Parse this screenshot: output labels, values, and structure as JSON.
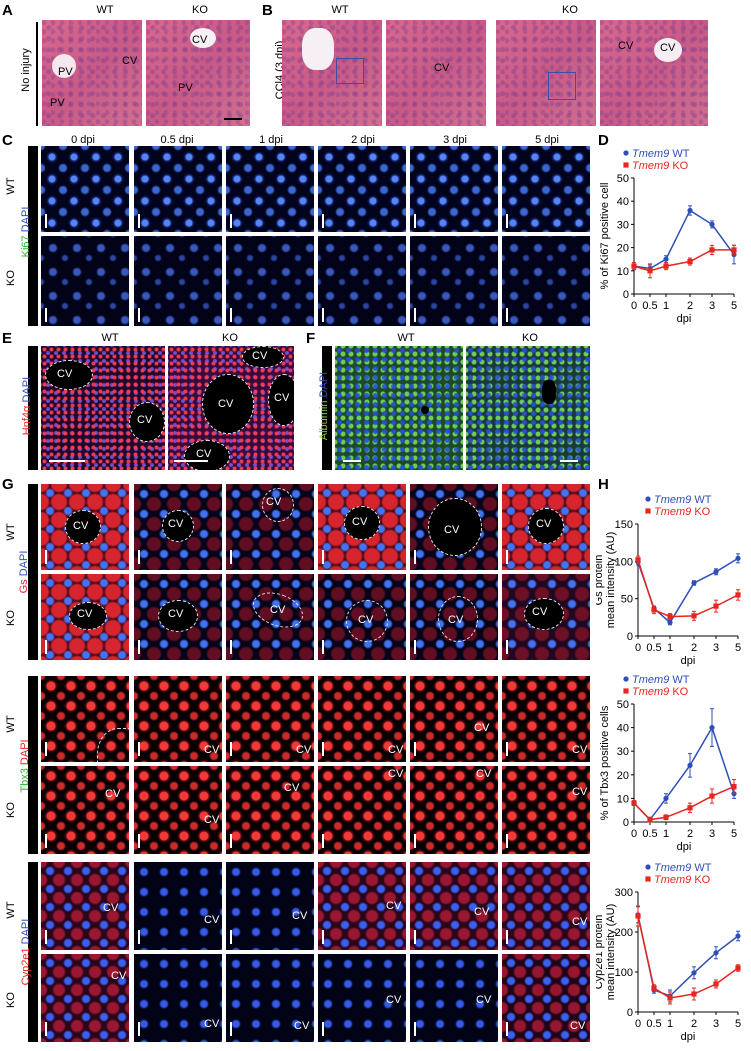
{
  "panels": {
    "A": {
      "letter": "A",
      "col_wt": "WT",
      "col_ko": "KO",
      "row_label": "No injury",
      "labels": {
        "pv1": "PV",
        "pv2": "PV",
        "cv1": "CV",
        "cv2": "CV",
        "pv3": "PV"
      }
    },
    "B": {
      "letter": "B",
      "col_wt": "WT",
      "col_ko": "KO",
      "row_label": "CCl4 (3 dpi)",
      "labels": {
        "cv_wt": "CV",
        "cv_ko1": "CV",
        "cv_ko2": "CV"
      }
    },
    "C": {
      "letter": "C",
      "timepoints": [
        "0 dpi",
        "0.5 dpi",
        "1 dpi",
        "2 dpi",
        "3 dpi",
        "5 dpi"
      ],
      "row_wt": "WT",
      "row_ko": "KO",
      "stain_label_1": "Ki67",
      "stain_label_2": "DAPI"
    },
    "D": {
      "letter": "D"
    },
    "E": {
      "letter": "E",
      "col_wt": "WT",
      "col_ko": "KO",
      "stain_label_1": "Hnf4α",
      "stain_label_2": "DAPI",
      "labels": {
        "cv1": "CV",
        "cv2": "CV",
        "cv3": "CV",
        "cv4": "CV",
        "cv5": "CV",
        "cv6": "CV"
      }
    },
    "F": {
      "letter": "F",
      "col_wt": "WT",
      "col_ko": "KO",
      "stain_label_1": "Albumin",
      "stain_label_2": "DAPI"
    },
    "G": {
      "letter": "G",
      "row_wt": "WT",
      "row_ko": "KO",
      "gs_label_1": "Gs",
      "gs_label_2": "DAPI",
      "tbx_label_1": "Tbx3",
      "tbx_label_2": "DAPI",
      "cyp_label_1": "Cyp2e1",
      "cyp_label_2": "DAPI",
      "cv": "CV"
    },
    "H": {
      "letter": "H"
    }
  },
  "colors": {
    "wt": "#2e4fb8",
    "ko": "#e8251f"
  },
  "chart_data": [
    {
      "id": "D",
      "type": "line",
      "x": [
        0,
        0.5,
        1,
        2,
        3,
        5
      ],
      "xticklabels": [
        "0",
        "0.5",
        "1",
        "2",
        "3",
        "5"
      ],
      "xlabel": "dpi",
      "ylabel": "% of Ki67 positive cell",
      "ylim": [
        0,
        50
      ],
      "yticks": [
        0,
        10,
        20,
        30,
        40,
        50
      ],
      "legend": "top-left",
      "series": [
        {
          "name": "Tmem9 WT",
          "values": [
            12,
            11,
            15,
            36,
            30,
            17
          ],
          "err": [
            1.5,
            1.5,
            1.5,
            2,
            1.5,
            4
          ]
        },
        {
          "name": "Tmem9 KO",
          "values": [
            12,
            10,
            12,
            14,
            19,
            19
          ],
          "err": [
            1.5,
            3,
            1.5,
            1.5,
            2,
            2
          ]
        }
      ]
    },
    {
      "id": "H1",
      "type": "line",
      "x": [
        0,
        0.5,
        1,
        2,
        3,
        5
      ],
      "xticklabels": [
        "0",
        "0.5",
        "1",
        "2",
        "3",
        "5"
      ],
      "xlabel": "dpi",
      "ylabel_1": "Gs protein",
      "ylabel_2": "mean intensity (AU)",
      "ylim": [
        0,
        150
      ],
      "yticks": [
        0,
        50,
        100,
        150
      ],
      "legend": "top-right",
      "series": [
        {
          "name": "Tmem9 WT",
          "values": [
            99,
            37,
            18,
            71,
            86,
            104
          ],
          "err": [
            4,
            3,
            3,
            3,
            4,
            6
          ]
        },
        {
          "name": "Tmem9 KO",
          "values": [
            102,
            35,
            26,
            27,
            40,
            55
          ],
          "err": [
            5,
            5,
            4,
            6,
            8,
            7
          ]
        }
      ]
    },
    {
      "id": "H2",
      "type": "line",
      "x": [
        0,
        0.5,
        1,
        2,
        3,
        5
      ],
      "xticklabels": [
        "0",
        "0.5",
        "1",
        "2",
        "3",
        "5"
      ],
      "xlabel": "dpi",
      "ylabel": "% of Tbx3 positive cells",
      "ylim": [
        0,
        50
      ],
      "yticks": [
        0,
        10,
        20,
        30,
        40,
        50
      ],
      "legend": "top-left",
      "series": [
        {
          "name": "Tmem9 WT",
          "values": [
            8,
            1,
            10,
            24,
            40,
            12
          ],
          "err": [
            1,
            1,
            2,
            5,
            8,
            2
          ]
        },
        {
          "name": "Tmem9 KO",
          "values": [
            8,
            1,
            2,
            6,
            11,
            15
          ],
          "err": [
            1,
            1,
            1,
            2,
            3,
            3
          ]
        }
      ]
    },
    {
      "id": "H3",
      "type": "line",
      "x": [
        0,
        0.5,
        1,
        2,
        3,
        5
      ],
      "xticklabels": [
        "0",
        "0.5",
        "1",
        "2",
        "3",
        "5"
      ],
      "xlabel": "dpi",
      "ylabel_1": "Cyp2e1 protein",
      "ylabel_2": "mean intensity (AU)",
      "ylim": [
        0,
        300
      ],
      "yticks": [
        0,
        100,
        200,
        300
      ],
      "legend": "top-right",
      "series": [
        {
          "name": "Tmem9 WT",
          "values": [
            243,
            55,
            40,
            98,
            148,
            190
          ],
          "err": [
            20,
            8,
            15,
            15,
            15,
            12
          ]
        },
        {
          "name": "Tmem9 KO",
          "values": [
            240,
            60,
            35,
            45,
            70,
            110
          ],
          "err": [
            25,
            8,
            15,
            15,
            10,
            8
          ]
        }
      ]
    }
  ]
}
